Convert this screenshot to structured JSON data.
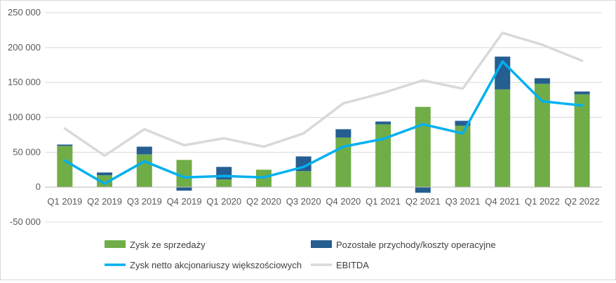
{
  "chart_data": {
    "type": "bar",
    "stacked": true,
    "categories": [
      "Q1 2019",
      "Q2 2019",
      "Q3 2019",
      "Q4 2019",
      "Q1 2020",
      "Q2 2020",
      "Q3 2020",
      "Q4 2020",
      "Q1 2021",
      "Q2 2021",
      "Q3 2021",
      "Q4 2021",
      "Q1 2022",
      "Q2 2022"
    ],
    "ylim": [
      -50000,
      250000
    ],
    "yticks": [
      -50000,
      0,
      50000,
      100000,
      150000,
      200000,
      250000
    ],
    "ytick_labels": [
      "-50 000",
      "0",
      "50 000",
      "100 000",
      "150 000",
      "200 000",
      "250 000"
    ],
    "grid": true,
    "legend_position": "bottom",
    "bar_series": [
      {
        "name": "Zysk ze sprzedaży",
        "color": "#70ad47",
        "values": [
          59000,
          17000,
          47000,
          39000,
          11000,
          25000,
          23000,
          71000,
          90000,
          115000,
          88000,
          140000,
          148000,
          133000
        ]
      },
      {
        "name": "Pozostałe przychody/koszty operacyjne",
        "color": "#255e91",
        "values": [
          2000,
          4000,
          11000,
          -5000,
          18000,
          0,
          21000,
          12000,
          4000,
          -8000,
          7000,
          47000,
          8000,
          4000
        ]
      }
    ],
    "line_series": [
      {
        "name": "Zysk netto akcjonariuszy większościowych",
        "color": "#00b0f0",
        "values": [
          38000,
          5000,
          37000,
          14000,
          16000,
          14000,
          29000,
          58000,
          69000,
          90000,
          77000,
          180000,
          123000,
          117000
        ]
      },
      {
        "name": "EBITDA",
        "color": "#d9d9d9",
        "values": [
          84000,
          45000,
          83000,
          60000,
          70000,
          58000,
          77000,
          120000,
          135000,
          153000,
          141000,
          221000,
          204000,
          181000
        ]
      }
    ]
  }
}
